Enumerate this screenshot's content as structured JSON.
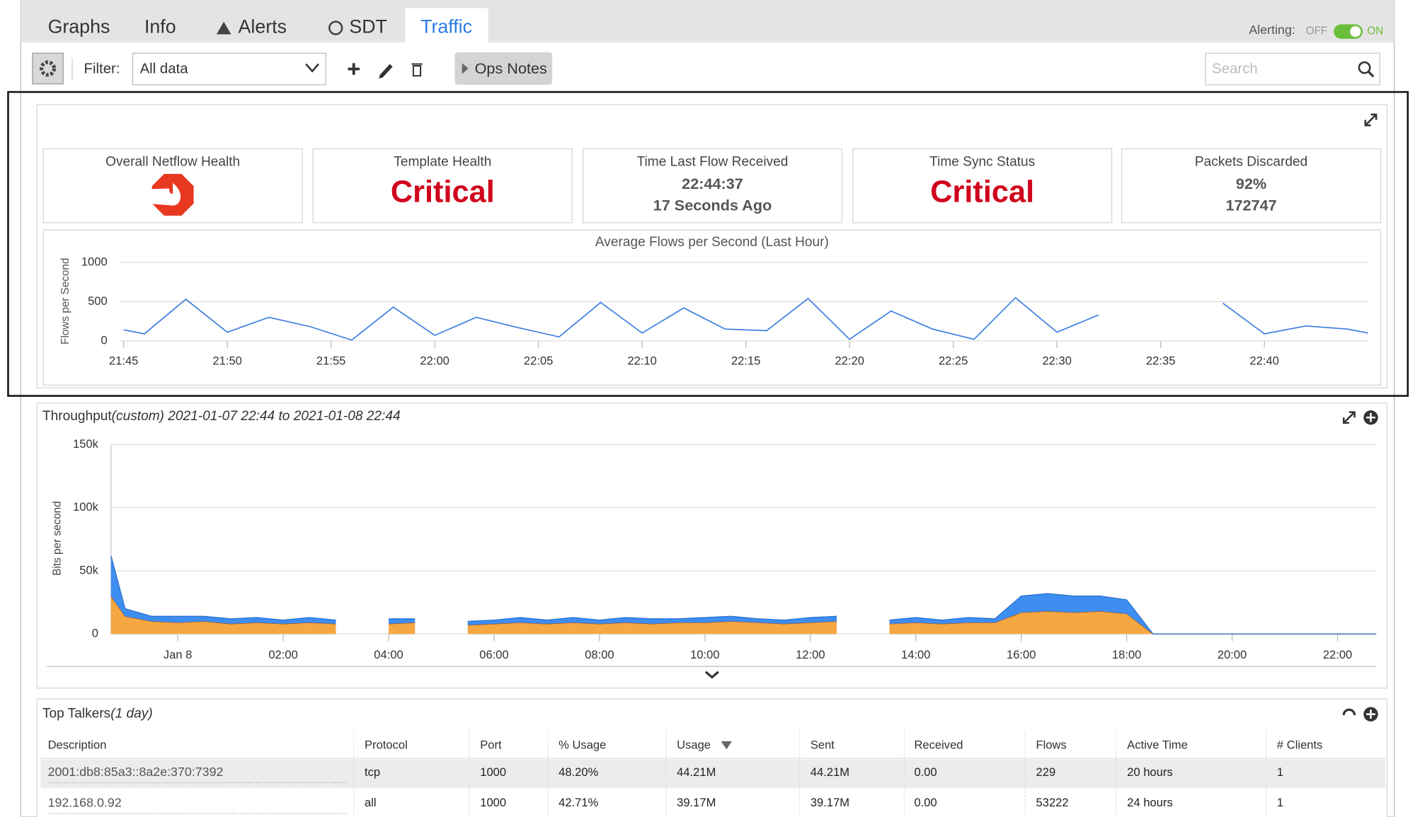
{
  "tabs": [
    "Graphs",
    "Info",
    "Alerts",
    "SDT",
    "Traffic"
  ],
  "alerting": {
    "label": "Alerting:",
    "off": "OFF",
    "on": "ON"
  },
  "toolbar": {
    "filter_label": "Filter:",
    "filter_value": "All data",
    "ops_notes": "Ops Notes",
    "search_placeholder": "Search"
  },
  "tiles": [
    {
      "title": "Overall Netflow Health"
    },
    {
      "title": "Template Health",
      "status": "Critical"
    },
    {
      "title": "Time Last Flow Received",
      "lines": [
        "22:44:37",
        "17 Seconds Ago"
      ]
    },
    {
      "title": "Time Sync Status",
      "status": "Critical"
    },
    {
      "title": "Packets Discarded",
      "lines": [
        "92%",
        "172747"
      ]
    }
  ],
  "chart_data": [
    {
      "type": "line",
      "title": "Average Flows per Second (Last Hour)",
      "y_label": "Flows per Second",
      "color": "#3a7de0",
      "grid": true,
      "x": [
        "21:45",
        "21:46",
        "21:48",
        "21:50",
        "21:52",
        "21:54",
        "21:56",
        "21:58",
        "22:00",
        "22:02",
        "22:04",
        "22:06",
        "22:08",
        "22:10",
        "22:12",
        "22:14",
        "22:16",
        "22:18",
        "22:20",
        "22:22",
        "22:24",
        "22:26",
        "22:28",
        "22:30",
        "22:32",
        "22:34",
        "22:38",
        "22:40",
        "22:42",
        "22:44",
        "22:45"
      ],
      "values": [
        140,
        90,
        530,
        110,
        300,
        180,
        10,
        430,
        70,
        300,
        170,
        50,
        490,
        100,
        420,
        150,
        130,
        540,
        20,
        380,
        150,
        20,
        550,
        110,
        330,
        null,
        480,
        90,
        190,
        150,
        100
      ],
      "xlim": [
        "21:45",
        "22:45"
      ],
      "xticks": [
        "21:45",
        "21:50",
        "21:55",
        "22:00",
        "22:05",
        "22:10",
        "22:15",
        "22:20",
        "22:25",
        "22:30",
        "22:35",
        "22:40"
      ],
      "ylim": [
        0,
        1000
      ],
      "yticks": [
        0,
        500,
        1000
      ]
    },
    {
      "type": "area",
      "stacked": true,
      "title": "Throughput",
      "subtitle": "(custom) 2021-01-07 22:44 to 2021-01-08 22:44",
      "y_label": "Bits per second",
      "grid": true,
      "x": [
        "2021-01-07 22:44",
        "2021-01-07 23:00",
        "2021-01-07 23:30",
        "2021-01-08 00:00",
        "2021-01-08 00:30",
        "2021-01-08 01:00",
        "2021-01-08 01:30",
        "2021-01-08 02:00",
        "2021-01-08 02:30",
        "2021-01-08 03:00",
        "2021-01-08 03:30",
        "2021-01-08 04:00",
        "2021-01-08 04:30",
        "2021-01-08 05:00",
        "2021-01-08 05:30",
        "2021-01-08 06:00",
        "2021-01-08 06:30",
        "2021-01-08 07:00",
        "2021-01-08 07:30",
        "2021-01-08 08:00",
        "2021-01-08 08:30",
        "2021-01-08 09:00",
        "2021-01-08 09:30",
        "2021-01-08 10:00",
        "2021-01-08 10:30",
        "2021-01-08 11:00",
        "2021-01-08 11:30",
        "2021-01-08 12:00",
        "2021-01-08 12:30",
        "2021-01-08 13:00",
        "2021-01-08 13:30",
        "2021-01-08 14:00",
        "2021-01-08 14:30",
        "2021-01-08 15:00",
        "2021-01-08 15:30",
        "2021-01-08 16:00",
        "2021-01-08 16:30",
        "2021-01-08 17:00",
        "2021-01-08 17:30",
        "2021-01-08 18:00",
        "2021-01-08 18:30",
        "2021-01-08 19:00",
        "2021-01-08 19:30",
        "2021-01-08 20:00",
        "2021-01-08 20:30",
        "2021-01-08 21:00",
        "2021-01-08 21:30",
        "2021-01-08 22:00",
        "2021-01-08 22:30",
        "2021-01-08 22:44"
      ],
      "series": [
        {
          "color": "#f5a742",
          "line_color": "#b0501e",
          "values": [
            30000,
            14000,
            10000,
            9000,
            10000,
            8000,
            9000,
            8000,
            9000,
            8000,
            null,
            8000,
            9000,
            null,
            7000,
            8000,
            9000,
            8000,
            9000,
            8000,
            9000,
            8000,
            9000,
            9000,
            10000,
            9000,
            8000,
            9000,
            10000,
            null,
            8000,
            9000,
            8000,
            9000,
            9000,
            17000,
            18000,
            17000,
            18000,
            16000,
            0,
            0,
            0,
            0,
            0,
            0,
            0,
            0,
            0,
            0
          ]
        },
        {
          "color": "#3d8ef0",
          "line_color": "#2a6fd0",
          "values": [
            32000,
            6000,
            4000,
            5000,
            4000,
            4000,
            4000,
            3000,
            4000,
            3000,
            null,
            4000,
            3000,
            null,
            3000,
            3000,
            4000,
            3000,
            4000,
            3000,
            4000,
            4000,
            3000,
            4000,
            4000,
            3000,
            3000,
            4000,
            4000,
            null,
            3000,
            4000,
            3000,
            4000,
            3000,
            13000,
            14000,
            13000,
            12000,
            11000,
            0,
            0,
            0,
            0,
            0,
            0,
            0,
            0,
            0,
            0
          ]
        }
      ],
      "xlim": [
        "2021-01-07 22:44",
        "2021-01-08 22:44"
      ],
      "xticks": [
        {
          "value": "2021-01-08 00:00",
          "label": "Jan 8"
        },
        {
          "value": "2021-01-08 02:00",
          "label": "02:00"
        },
        {
          "value": "2021-01-08 04:00",
          "label": "04:00"
        },
        {
          "value": "2021-01-08 06:00",
          "label": "06:00"
        },
        {
          "value": "2021-01-08 08:00",
          "label": "08:00"
        },
        {
          "value": "2021-01-08 10:00",
          "label": "10:00"
        },
        {
          "value": "2021-01-08 12:00",
          "label": "12:00"
        },
        {
          "value": "2021-01-08 14:00",
          "label": "14:00"
        },
        {
          "value": "2021-01-08 16:00",
          "label": "16:00"
        },
        {
          "value": "2021-01-08 18:00",
          "label": "18:00"
        },
        {
          "value": "2021-01-08 20:00",
          "label": "20:00"
        },
        {
          "value": "2021-01-08 22:00",
          "label": "22:00"
        }
      ],
      "ylim": [
        0,
        150000
      ],
      "yticks": [
        0,
        {
          "value": 50000,
          "label": "50k"
        },
        {
          "value": 100000,
          "label": "100k"
        },
        {
          "value": 150000,
          "label": "150k"
        }
      ]
    }
  ],
  "top_talkers": {
    "title": "Top Talkers",
    "period": "(1 day)",
    "columns": [
      "Description",
      "Protocol",
      "Port",
      "% Usage",
      "Usage",
      "Sent",
      "Received",
      "Flows",
      "Active Time",
      "# Clients"
    ],
    "rows": [
      [
        "2001:db8:85a3::8a2e:370:7392",
        "tcp",
        "1000",
        "48.20%",
        "44.21M",
        "44.21M",
        "0.00",
        "229",
        "20 hours",
        "1"
      ],
      [
        "192.168.0.92",
        "all",
        "1000",
        "42.71%",
        "39.17M",
        "39.17M",
        "0.00",
        "53222",
        "24 hours",
        "1"
      ]
    ]
  }
}
